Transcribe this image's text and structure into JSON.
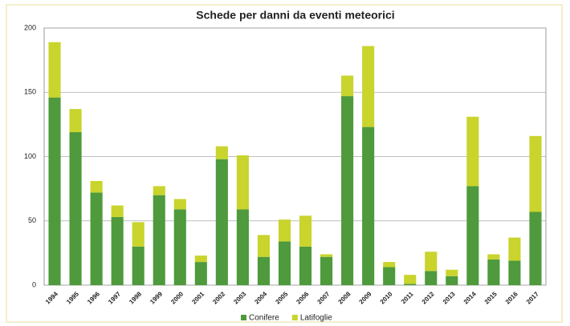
{
  "chart_data": {
    "type": "bar",
    "stacked": true,
    "title": "Schede per danni da eventi meteorici",
    "categories": [
      "1994",
      "1995",
      "1996",
      "1997",
      "1998",
      "1999",
      "2000",
      "2001",
      "2002",
      "2003",
      "2004",
      "2005",
      "2006",
      "2007",
      "2008",
      "2009",
      "2010",
      "2011",
      "2012",
      "2013",
      "2014",
      "2015",
      "2016",
      "2017"
    ],
    "series": [
      {
        "name": "Conifere",
        "color": "#4e9a3c",
        "values": [
          146,
          119,
          72,
          53,
          30,
          70,
          59,
          18,
          98,
          59,
          22,
          34,
          30,
          22,
          147,
          123,
          14,
          1,
          11,
          7,
          77,
          20,
          19,
          57
        ]
      },
      {
        "name": "Latifoglie",
        "color": "#c9d42c",
        "values": [
          43,
          18,
          9,
          9,
          19,
          7,
          8,
          5,
          10,
          42,
          17,
          17,
          24,
          2,
          16,
          63,
          4,
          7,
          15,
          5,
          54,
          4,
          18,
          59
        ]
      }
    ],
    "ylim": [
      0,
      200
    ],
    "yticks": [
      0,
      50,
      100,
      150,
      200
    ],
    "grid": true,
    "legend": "bottom"
  }
}
